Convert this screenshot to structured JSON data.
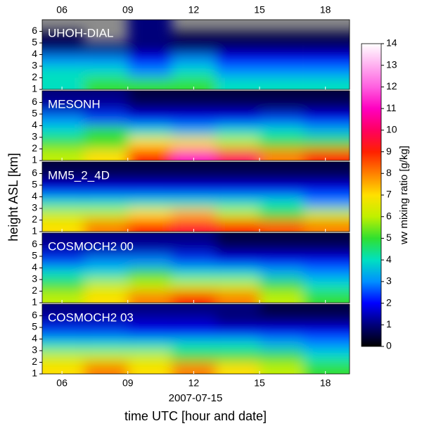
{
  "chart_data": {
    "type": "heatmap",
    "xlabel": "time UTC [hour and date]",
    "date_label": "2007-07-15",
    "ylabel": "height ASL [km]",
    "colorbar_label": "wv mixing ratio [g/kg]",
    "xlim": [
      5.1,
      19.1
    ],
    "xticks": [
      {
        "value": 6,
        "label": "06"
      },
      {
        "value": 9,
        "label": "09"
      },
      12,
      15,
      18
    ],
    "ylim": [
      1,
      7
    ],
    "yticks": [
      1,
      2,
      3,
      4,
      5,
      6
    ],
    "clim": [
      0,
      14
    ],
    "cticks": [
      0,
      1,
      2,
      3,
      4,
      5,
      6,
      7,
      8,
      9,
      10,
      11,
      12,
      13,
      14
    ],
    "colormap": [
      "#000000",
      "#00007a",
      "#0000ff",
      "#0090ff",
      "#00e0c0",
      "#30e030",
      "#c0f000",
      "#ffe000",
      "#ff8000",
      "#ff2000",
      "#ff0060",
      "#ff00c0",
      "#ff60e0",
      "#ffb0f0",
      "#ffffff"
    ],
    "missing_color": "#8c8c8c",
    "x": [
      6,
      8,
      10,
      12,
      14,
      16,
      18
    ],
    "y": [
      1.5,
      2.5,
      3.5,
      4.5,
      5.5,
      6.5
    ],
    "panels": [
      {
        "name": "UHOH-DIAL",
        "values": [
          [
            4,
            5,
            5,
            5,
            4,
            4,
            4
          ],
          [
            4,
            4,
            3,
            4,
            3,
            3,
            3
          ],
          [
            3,
            3,
            2,
            3,
            2,
            2,
            2
          ],
          [
            1,
            1,
            1,
            1,
            1,
            1,
            1
          ],
          [
            0.5,
            null,
            1,
            0.5,
            0.5,
            0.5,
            0.5
          ],
          [
            null,
            null,
            1,
            null,
            null,
            null,
            null
          ]
        ]
      },
      {
        "name": "MESONH",
        "values": [
          [
            6,
            7,
            9,
            11,
            10,
            8,
            9
          ],
          [
            5,
            5,
            7,
            7,
            6,
            5,
            5
          ],
          [
            4,
            5,
            4,
            3.5,
            4,
            4,
            3.5
          ],
          [
            3,
            2.5,
            2,
            2,
            2,
            2.5,
            2
          ],
          [
            1.5,
            1.5,
            1,
            1,
            1,
            1,
            1
          ],
          [
            1,
            1,
            0.5,
            0.5,
            0.5,
            0.5,
            0.5
          ]
        ]
      },
      {
        "name": "MM5_2_4D",
        "values": [
          [
            7,
            8,
            9,
            9.5,
            9,
            8.5,
            8
          ],
          [
            6,
            6,
            7,
            7.5,
            6,
            5,
            6
          ],
          [
            4,
            4,
            4,
            4,
            4,
            4,
            3
          ],
          [
            2,
            2,
            2,
            2,
            2,
            2,
            2
          ],
          [
            1,
            1,
            1,
            1,
            1,
            1,
            1
          ],
          [
            0.5,
            0.5,
            0.5,
            0.5,
            0.5,
            0.5,
            0.5
          ]
        ]
      },
      {
        "name": "COSMOCH2 00",
        "values": [
          [
            6,
            7,
            8,
            9,
            8,
            6,
            5
          ],
          [
            5,
            6,
            6,
            6,
            6,
            5,
            4
          ],
          [
            4,
            4,
            5,
            4,
            4,
            3.5,
            3
          ],
          [
            2.5,
            3,
            3,
            2.5,
            2,
            2,
            2
          ],
          [
            1.5,
            1.5,
            1.5,
            1.5,
            1,
            1,
            1
          ],
          [
            1,
            1,
            1,
            1,
            0.5,
            0.5,
            0.5
          ]
        ]
      },
      {
        "name": "COSMOCH2 03",
        "values": [
          [
            7,
            8,
            7,
            8,
            7,
            6,
            5
          ],
          [
            6,
            6,
            6,
            5,
            5,
            5,
            4
          ],
          [
            4,
            4,
            4,
            4,
            4,
            3.5,
            3
          ],
          [
            2.5,
            2.5,
            2,
            2,
            2,
            2,
            2
          ],
          [
            1.5,
            1.5,
            1.5,
            1.5,
            1,
            1,
            1
          ],
          [
            1,
            1,
            1,
            1,
            1,
            0.5,
            0.5
          ]
        ]
      }
    ]
  }
}
